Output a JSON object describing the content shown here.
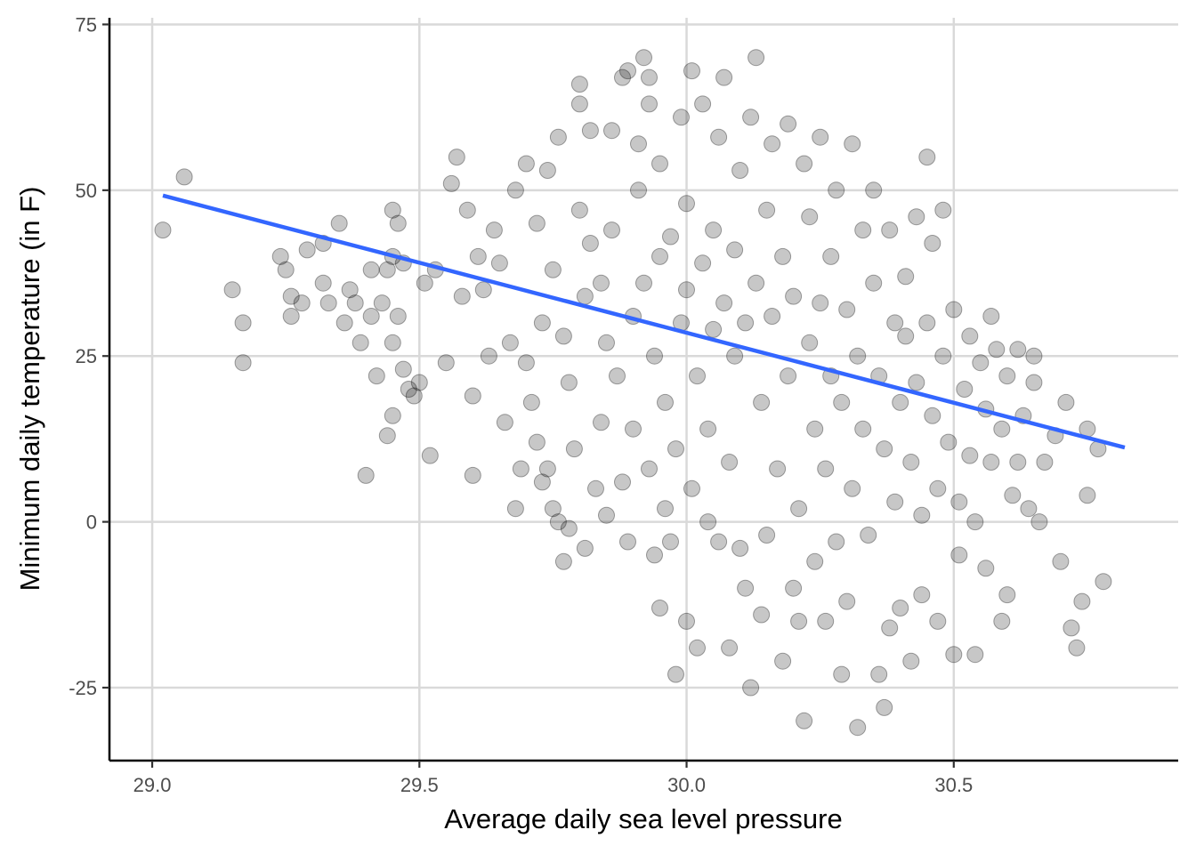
{
  "chart_data": {
    "type": "scatter",
    "title": "",
    "xlabel": "Average daily sea level pressure",
    "ylabel": "Minimum daily temperature (in F)",
    "xlim": [
      28.92,
      30.92
    ],
    "ylim": [
      -36,
      76
    ],
    "xticks": [
      29.0,
      29.5,
      30.0,
      30.5
    ],
    "xtick_labels": [
      "29.0",
      "29.5",
      "30.0",
      "30.5"
    ],
    "yticks": [
      -25,
      0,
      25,
      50,
      75
    ],
    "ytick_labels": [
      "-25",
      "0",
      "25",
      "50",
      "75"
    ],
    "grid": true,
    "legend": "none",
    "point_color": "#000000",
    "point_alpha": 0.22,
    "trend_line": {
      "method": "linear",
      "color": "#3366ff",
      "x": [
        29.02,
        30.82
      ],
      "y": [
        49.2,
        11.2
      ]
    },
    "points": [
      [
        29.02,
        44
      ],
      [
        29.06,
        52
      ],
      [
        29.15,
        35
      ],
      [
        29.17,
        30
      ],
      [
        29.17,
        24
      ],
      [
        29.24,
        40
      ],
      [
        29.25,
        38
      ],
      [
        29.26,
        34
      ],
      [
        29.26,
        31
      ],
      [
        29.28,
        33
      ],
      [
        29.29,
        41
      ],
      [
        29.32,
        42
      ],
      [
        29.32,
        36
      ],
      [
        29.33,
        33
      ],
      [
        29.35,
        45
      ],
      [
        29.36,
        30
      ],
      [
        29.37,
        35
      ],
      [
        29.38,
        33
      ],
      [
        29.39,
        27
      ],
      [
        29.4,
        7
      ],
      [
        29.41,
        31
      ],
      [
        29.41,
        38
      ],
      [
        29.42,
        22
      ],
      [
        29.43,
        33
      ],
      [
        29.44,
        38
      ],
      [
        29.44,
        13
      ],
      [
        29.45,
        16
      ],
      [
        29.45,
        27
      ],
      [
        29.45,
        40
      ],
      [
        29.45,
        47
      ],
      [
        29.46,
        45
      ],
      [
        29.46,
        31
      ],
      [
        29.47,
        23
      ],
      [
        29.47,
        39
      ],
      [
        29.48,
        20
      ],
      [
        29.49,
        19
      ],
      [
        29.5,
        21
      ],
      [
        29.51,
        36
      ],
      [
        29.52,
        10
      ],
      [
        29.53,
        38
      ],
      [
        29.55,
        24
      ],
      [
        29.56,
        51
      ],
      [
        29.57,
        55
      ],
      [
        29.58,
        34
      ],
      [
        29.59,
        47
      ],
      [
        29.6,
        7
      ],
      [
        29.6,
        19
      ],
      [
        29.61,
        40
      ],
      [
        29.62,
        35
      ],
      [
        29.63,
        25
      ],
      [
        29.64,
        44
      ],
      [
        29.65,
        39
      ],
      [
        29.66,
        15
      ],
      [
        29.67,
        27
      ],
      [
        29.68,
        50
      ],
      [
        29.68,
        2
      ],
      [
        29.69,
        8
      ],
      [
        29.7,
        54
      ],
      [
        29.7,
        24
      ],
      [
        29.71,
        18
      ],
      [
        29.72,
        12
      ],
      [
        29.72,
        45
      ],
      [
        29.73,
        30
      ],
      [
        29.73,
        6
      ],
      [
        29.74,
        53
      ],
      [
        29.74,
        8
      ],
      [
        29.75,
        2
      ],
      [
        29.75,
        38
      ],
      [
        29.76,
        0
      ],
      [
        29.76,
        58
      ],
      [
        29.77,
        -6
      ],
      [
        29.77,
        28
      ],
      [
        29.78,
        21
      ],
      [
        29.78,
        -1
      ],
      [
        29.79,
        11
      ],
      [
        29.8,
        47
      ],
      [
        29.8,
        63
      ],
      [
        29.8,
        66
      ],
      [
        29.81,
        -4
      ],
      [
        29.81,
        34
      ],
      [
        29.82,
        42
      ],
      [
        29.82,
        59
      ],
      [
        29.83,
        5
      ],
      [
        29.84,
        36
      ],
      [
        29.84,
        15
      ],
      [
        29.85,
        1
      ],
      [
        29.85,
        27
      ],
      [
        29.86,
        44
      ],
      [
        29.86,
        59
      ],
      [
        29.87,
        22
      ],
      [
        29.88,
        6
      ],
      [
        29.88,
        67
      ],
      [
        29.89,
        -3
      ],
      [
        29.89,
        68
      ],
      [
        29.9,
        31
      ],
      [
        29.9,
        14
      ],
      [
        29.91,
        50
      ],
      [
        29.91,
        57
      ],
      [
        29.92,
        70
      ],
      [
        29.92,
        36
      ],
      [
        29.93,
        8
      ],
      [
        29.93,
        63
      ],
      [
        29.93,
        67
      ],
      [
        29.94,
        -5
      ],
      [
        29.94,
        25
      ],
      [
        29.95,
        40
      ],
      [
        29.95,
        -13
      ],
      [
        29.95,
        54
      ],
      [
        29.96,
        2
      ],
      [
        29.96,
        18
      ],
      [
        29.97,
        -3
      ],
      [
        29.97,
        43
      ],
      [
        29.98,
        11
      ],
      [
        29.98,
        -23
      ],
      [
        29.99,
        30
      ],
      [
        29.99,
        61
      ],
      [
        30.0,
        -15
      ],
      [
        30.0,
        35
      ],
      [
        30.0,
        48
      ],
      [
        30.01,
        68
      ],
      [
        30.01,
        5
      ],
      [
        30.02,
        22
      ],
      [
        30.02,
        -19
      ],
      [
        30.03,
        63
      ],
      [
        30.03,
        39
      ],
      [
        30.04,
        0
      ],
      [
        30.04,
        14
      ],
      [
        30.05,
        29
      ],
      [
        30.05,
        44
      ],
      [
        30.06,
        -3
      ],
      [
        30.06,
        58
      ],
      [
        30.07,
        67
      ],
      [
        30.07,
        33
      ],
      [
        30.08,
        9
      ],
      [
        30.08,
        -19
      ],
      [
        30.09,
        25
      ],
      [
        30.09,
        41
      ],
      [
        30.1,
        -4
      ],
      [
        30.1,
        53
      ],
      [
        30.11,
        -10
      ],
      [
        30.11,
        30
      ],
      [
        30.12,
        61
      ],
      [
        30.12,
        -25
      ],
      [
        30.13,
        36
      ],
      [
        30.13,
        70
      ],
      [
        30.14,
        -14
      ],
      [
        30.14,
        18
      ],
      [
        30.15,
        47
      ],
      [
        30.15,
        -2
      ],
      [
        30.16,
        31
      ],
      [
        30.16,
        57
      ],
      [
        30.17,
        8
      ],
      [
        30.18,
        -21
      ],
      [
        30.18,
        40
      ],
      [
        30.19,
        22
      ],
      [
        30.19,
        60
      ],
      [
        30.2,
        -10
      ],
      [
        30.2,
        34
      ],
      [
        30.21,
        -15
      ],
      [
        30.21,
        2
      ],
      [
        30.22,
        54
      ],
      [
        30.22,
        -30
      ],
      [
        30.23,
        27
      ],
      [
        30.23,
        46
      ],
      [
        30.24,
        -6
      ],
      [
        30.24,
        14
      ],
      [
        30.25,
        58
      ],
      [
        30.25,
        33
      ],
      [
        30.26,
        -15
      ],
      [
        30.26,
        8
      ],
      [
        30.27,
        40
      ],
      [
        30.27,
        22
      ],
      [
        30.28,
        -3
      ],
      [
        30.28,
        50
      ],
      [
        30.29,
        -23
      ],
      [
        30.29,
        18
      ],
      [
        30.3,
        32
      ],
      [
        30.3,
        -12
      ],
      [
        30.31,
        57
      ],
      [
        30.31,
        5
      ],
      [
        30.32,
        25
      ],
      [
        30.32,
        -31
      ],
      [
        30.33,
        44
      ],
      [
        30.33,
        14
      ],
      [
        30.34,
        -2
      ],
      [
        30.35,
        50
      ],
      [
        30.35,
        36
      ],
      [
        30.36,
        -23
      ],
      [
        30.36,
        22
      ],
      [
        30.37,
        -28
      ],
      [
        30.37,
        11
      ],
      [
        30.38,
        44
      ],
      [
        30.38,
        -16
      ],
      [
        30.39,
        30
      ],
      [
        30.39,
        3
      ],
      [
        30.4,
        18
      ],
      [
        30.4,
        -13
      ],
      [
        30.41,
        37
      ],
      [
        30.41,
        28
      ],
      [
        30.42,
        -21
      ],
      [
        30.42,
        9
      ],
      [
        30.43,
        46
      ],
      [
        30.43,
        21
      ],
      [
        30.44,
        -11
      ],
      [
        30.44,
        1
      ],
      [
        30.45,
        55
      ],
      [
        30.45,
        30
      ],
      [
        30.46,
        42
      ],
      [
        30.46,
        16
      ],
      [
        30.47,
        -15
      ],
      [
        30.47,
        5
      ],
      [
        30.48,
        47
      ],
      [
        30.48,
        25
      ],
      [
        30.49,
        12
      ],
      [
        30.5,
        -20
      ],
      [
        30.5,
        32
      ],
      [
        30.51,
        3
      ],
      [
        30.51,
        -5
      ],
      [
        30.52,
        20
      ],
      [
        30.53,
        10
      ],
      [
        30.53,
        28
      ],
      [
        30.54,
        -20
      ],
      [
        30.54,
        0
      ],
      [
        30.55,
        24
      ],
      [
        30.56,
        17
      ],
      [
        30.56,
        -7
      ],
      [
        30.57,
        31
      ],
      [
        30.57,
        9
      ],
      [
        30.58,
        26
      ],
      [
        30.59,
        -15
      ],
      [
        30.59,
        14
      ],
      [
        30.6,
        22
      ],
      [
        30.6,
        -11
      ],
      [
        30.61,
        4
      ],
      [
        30.62,
        9
      ],
      [
        30.62,
        26
      ],
      [
        30.63,
        16
      ],
      [
        30.64,
        2
      ],
      [
        30.65,
        25
      ],
      [
        30.65,
        21
      ],
      [
        30.66,
        0
      ],
      [
        30.67,
        9
      ],
      [
        30.69,
        13
      ],
      [
        30.7,
        -6
      ],
      [
        30.71,
        18
      ],
      [
        30.72,
        -16
      ],
      [
        30.73,
        -19
      ],
      [
        30.74,
        -12
      ],
      [
        30.75,
        14
      ],
      [
        30.75,
        4
      ],
      [
        30.77,
        11
      ],
      [
        30.78,
        -9
      ]
    ]
  }
}
